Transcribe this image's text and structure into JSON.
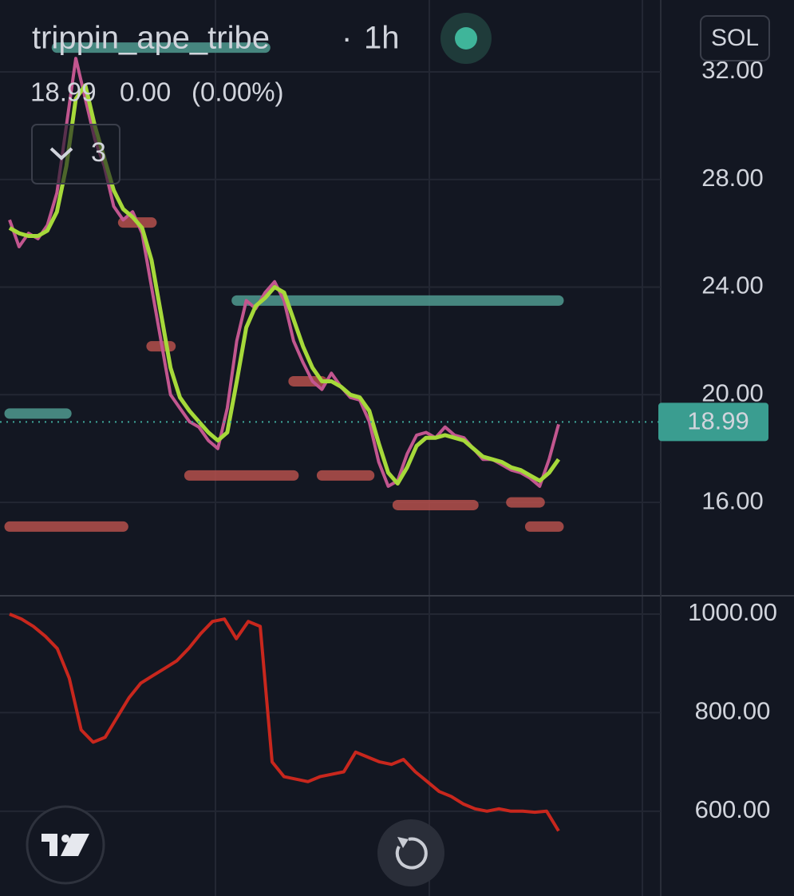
{
  "header": {
    "title": "trippin_ape_tribe",
    "separator": "·",
    "interval": "1h",
    "last": "18.99",
    "change": "0.00",
    "change_pct": "(0.00%)",
    "indicators_count": "3",
    "symbol_button": "SOL"
  },
  "chart_data": [
    {
      "type": "line",
      "ylim": [
        12.56,
        34.67
      ],
      "yticks": [
        {
          "value": 16,
          "label": "16.00"
        },
        {
          "value": 20,
          "label": "20.00"
        },
        {
          "value": 24,
          "label": "24.00"
        },
        {
          "value": 28,
          "label": "28.00"
        },
        {
          "value": 32,
          "label": "32.00"
        }
      ],
      "grid": true,
      "last_value": 18.99,
      "series": [
        {
          "color": "#c2568f",
          "values": [
            26.5,
            25.5,
            26.0,
            25.8,
            26.3,
            27.5,
            30.0,
            32.5,
            31.0,
            29.5,
            28.5,
            27.0,
            26.5,
            26.8,
            26.0,
            24.0,
            22.0,
            20.0,
            19.5,
            19.0,
            18.8,
            18.3,
            18.0,
            19.5,
            22.0,
            23.5,
            23.2,
            23.8,
            24.2,
            23.5,
            22.0,
            21.2,
            20.5,
            20.2,
            20.8,
            20.3,
            19.9,
            19.8,
            19.0,
            17.5,
            16.6,
            16.8,
            17.8,
            18.5,
            18.6,
            18.4,
            18.8,
            18.5,
            18.4,
            18.0,
            17.6,
            17.6,
            17.4,
            17.2,
            17.1,
            16.9,
            16.6,
            17.6,
            18.9
          ]
        },
        {
          "color": "#a6d93a",
          "values": [
            26.2,
            26.0,
            25.9,
            25.9,
            26.1,
            26.8,
            28.5,
            31.0,
            31.5,
            30.0,
            28.8,
            27.6,
            26.9,
            26.6,
            26.2,
            25.0,
            23.0,
            21.0,
            19.9,
            19.4,
            19.0,
            18.6,
            18.3,
            18.6,
            20.5,
            22.5,
            23.3,
            23.6,
            24.0,
            23.8,
            22.8,
            21.8,
            21.0,
            20.5,
            20.5,
            20.3,
            20.0,
            19.9,
            19.4,
            18.2,
            17.1,
            16.7,
            17.3,
            18.1,
            18.4,
            18.4,
            18.5,
            18.4,
            18.3,
            18.0,
            17.7,
            17.6,
            17.5,
            17.3,
            17.2,
            17.0,
            16.8,
            17.1,
            17.6
          ]
        }
      ],
      "levels": [
        {
          "value": 32.9,
          "color": "#4f9a90",
          "from": 5,
          "to": 27
        },
        {
          "value": 23.5,
          "color": "#4f9a90",
          "from": 24,
          "to": 58
        },
        {
          "value": 19.3,
          "color": "#4f9a90",
          "from": 0,
          "to": 6
        },
        {
          "value": 17.0,
          "color": "#b5504c",
          "from": 19,
          "to": 30
        },
        {
          "value": 17.0,
          "color": "#b5504c",
          "from": 33,
          "to": 38
        },
        {
          "value": 15.1,
          "color": "#b5504c",
          "from": 0,
          "to": 12
        },
        {
          "value": 15.9,
          "color": "#b5504c",
          "from": 41,
          "to": 49
        },
        {
          "value": 20.5,
          "color": "#b5504c",
          "from": 30,
          "to": 33
        },
        {
          "value": 21.8,
          "color": "#b5504c",
          "from": 15,
          "to": 17
        },
        {
          "value": 26.4,
          "color": "#b5504c",
          "from": 12,
          "to": 15
        },
        {
          "value": 16.0,
          "color": "#b5504c",
          "from": 53,
          "to": 56
        },
        {
          "value": 15.1,
          "color": "#b5504c",
          "from": 55,
          "to": 58
        }
      ]
    },
    {
      "type": "line",
      "ylim": [
        428,
        1034
      ],
      "yticks": [
        {
          "value": 600,
          "label": "600.00"
        },
        {
          "value": 800,
          "label": "800.00"
        },
        {
          "value": 1000,
          "label": "1000.00"
        }
      ],
      "grid": true,
      "series": [
        {
          "color": "#c8271d",
          "values": [
            1000,
            990,
            975,
            955,
            930,
            870,
            765,
            740,
            750,
            790,
            830,
            860,
            875,
            890,
            905,
            930,
            960,
            985,
            990,
            950,
            985,
            975,
            700,
            670,
            665,
            660,
            670,
            675,
            680,
            720,
            710,
            700,
            695,
            705,
            680,
            660,
            640,
            630,
            615,
            605,
            600,
            605,
            600,
            600,
            598,
            600,
            560
          ]
        }
      ]
    }
  ]
}
